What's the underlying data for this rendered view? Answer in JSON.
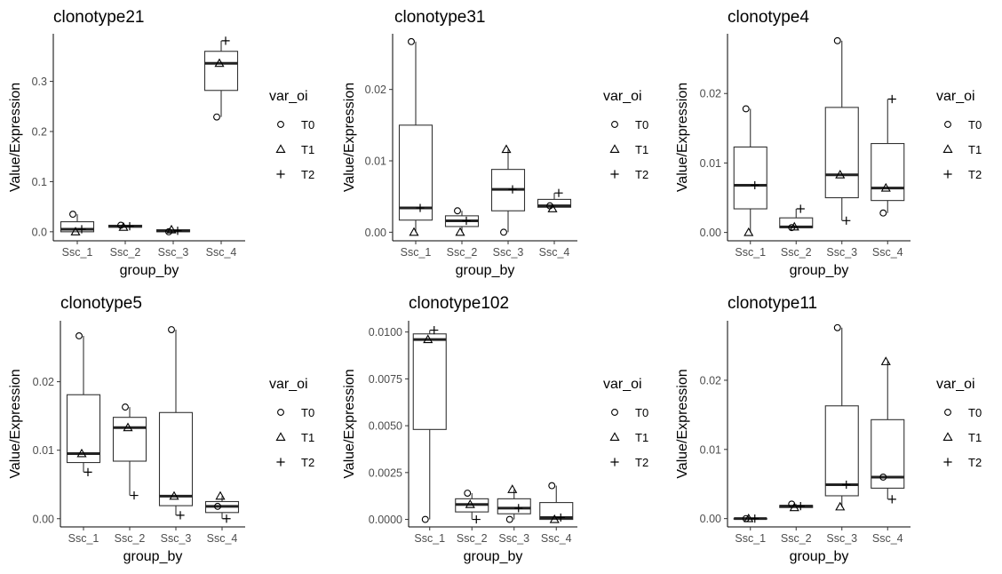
{
  "chart_data": {
    "type": "boxplot",
    "x_label": "group_by",
    "y_label": "Value/Expression",
    "legend_title": "var_oi",
    "legend_entries": [
      {
        "label": "T0",
        "shape": "circle"
      },
      {
        "label": "T1",
        "shape": "triangle"
      },
      {
        "label": "T2",
        "shape": "plus"
      }
    ],
    "grid": false,
    "legend_position": "right",
    "panels": [
      {
        "title": "clonotype21",
        "categories": [
          "Ssc_1",
          "Ssc_2",
          "Ssc_3",
          "Ssc_4"
        ],
        "ylim": [
          -0.018,
          0.395
        ],
        "yticks": [
          0.0,
          0.1,
          0.2,
          0.3
        ],
        "ytick_labels": [
          "0.0",
          "0.1",
          "0.2",
          "0.3"
        ],
        "boxes": [
          {
            "q1": 0.0,
            "median": 0.005,
            "q3": 0.02,
            "whisker_low": 0.0,
            "whisker_high": 0.035,
            "T0": 0.035,
            "T1": 0.0,
            "T2": 0.005
          },
          {
            "q1": 0.009,
            "median": 0.011,
            "q3": 0.013,
            "whisker_low": 0.009,
            "whisker_high": 0.013,
            "T0": 0.013,
            "T1": 0.009,
            "T2": 0.011
          },
          {
            "q1": 0.0,
            "median": 0.002,
            "q3": 0.004,
            "whisker_low": 0.0,
            "whisker_high": 0.004,
            "T0": 0.0,
            "T1": 0.004,
            "T2": 0.002
          },
          {
            "q1": 0.282,
            "median": 0.336,
            "q3": 0.36,
            "whisker_low": 0.229,
            "whisker_high": 0.381,
            "T0": 0.229,
            "T1": 0.336,
            "T2": 0.381
          }
        ]
      },
      {
        "title": "clonotype31",
        "categories": [
          "Ssc_1",
          "Ssc_2",
          "Ssc_3",
          "Ssc_4"
        ],
        "ylim": [
          -0.0012,
          0.0278
        ],
        "yticks": [
          0.0,
          0.01,
          0.02
        ],
        "ytick_labels": [
          "0.00",
          "0.01",
          "0.02"
        ],
        "boxes": [
          {
            "q1": 0.0017,
            "median": 0.0034,
            "q3": 0.015,
            "whisker_low": 0.0,
            "whisker_high": 0.0267,
            "T0": 0.0267,
            "T1": 0.0,
            "T2": 0.0034
          },
          {
            "q1": 0.0008,
            "median": 0.0016,
            "q3": 0.0023,
            "whisker_low": 0.0,
            "whisker_high": 0.003,
            "T0": 0.003,
            "T1": 0.0,
            "T2": 0.0016
          },
          {
            "q1": 0.003,
            "median": 0.006,
            "q3": 0.0088,
            "whisker_low": 0.0,
            "whisker_high": 0.0116,
            "T0": 0.0,
            "T1": 0.0116,
            "T2": 0.006
          },
          {
            "q1": 0.0035,
            "median": 0.0037,
            "q3": 0.0046,
            "whisker_low": 0.0033,
            "whisker_high": 0.0055,
            "T0": 0.0037,
            "T1": 0.0033,
            "T2": 0.0055
          }
        ]
      },
      {
        "title": "clonotype4",
        "categories": [
          "Ssc_1",
          "Ssc_2",
          "Ssc_3",
          "Ssc_4"
        ],
        "ylim": [
          -0.0012,
          0.0286
        ],
        "yticks": [
          0.0,
          0.01,
          0.02
        ],
        "ytick_labels": [
          "0.00",
          "0.01",
          "0.02"
        ],
        "boxes": [
          {
            "q1": 0.0034,
            "median": 0.0068,
            "q3": 0.0123,
            "whisker_low": 0.0,
            "whisker_high": 0.0178,
            "T0": 0.0178,
            "T1": 0.0,
            "T2": 0.0068
          },
          {
            "q1": 0.0007,
            "median": 0.0008,
            "q3": 0.0021,
            "whisker_low": 0.0007,
            "whisker_high": 0.0034,
            "T0": 0.0007,
            "T1": 0.0008,
            "T2": 0.0034
          },
          {
            "q1": 0.005,
            "median": 0.0083,
            "q3": 0.018,
            "whisker_low": 0.0017,
            "whisker_high": 0.0276,
            "T0": 0.0276,
            "T1": 0.0083,
            "T2": 0.0017
          },
          {
            "q1": 0.0046,
            "median": 0.0064,
            "q3": 0.0128,
            "whisker_low": 0.0028,
            "whisker_high": 0.0192,
            "T0": 0.0028,
            "T1": 0.0064,
            "T2": 0.0192
          }
        ]
      },
      {
        "title": "clonotype5",
        "categories": [
          "Ssc_1",
          "Ssc_2",
          "Ssc_3",
          "Ssc_4"
        ],
        "ylim": [
          -0.0012,
          0.0289
        ],
        "yticks": [
          0.0,
          0.01,
          0.02
        ],
        "ytick_labels": [
          "0.00",
          "0.01",
          "0.02"
        ],
        "boxes": [
          {
            "q1": 0.0082,
            "median": 0.0095,
            "q3": 0.0181,
            "whisker_low": 0.0068,
            "whisker_high": 0.0267,
            "T0": 0.0267,
            "T1": 0.0095,
            "T2": 0.0068
          },
          {
            "q1": 0.0084,
            "median": 0.0133,
            "q3": 0.0148,
            "whisker_low": 0.0034,
            "whisker_high": 0.0163,
            "T0": 0.0163,
            "T1": 0.0133,
            "T2": 0.0034
          },
          {
            "q1": 0.0019,
            "median": 0.0033,
            "q3": 0.0155,
            "whisker_low": 0.0005,
            "whisker_high": 0.0276,
            "T0": 0.0276,
            "T1": 0.0033,
            "T2": 0.0005
          },
          {
            "q1": 0.0009,
            "median": 0.0018,
            "q3": 0.0025,
            "whisker_low": 0.0,
            "whisker_high": 0.0033,
            "T0": 0.0018,
            "T1": 0.0033,
            "T2": 0.0
          }
        ]
      },
      {
        "title": "clonotype102",
        "categories": [
          "Ssc_1",
          "Ssc_2",
          "Ssc_3",
          "Ssc_4"
        ],
        "ylim": [
          -0.0004,
          0.0106
        ],
        "yticks": [
          0.0,
          0.0025,
          0.005,
          0.0075,
          0.01
        ],
        "ytick_labels": [
          "0.0000",
          "0.0025",
          "0.0050",
          "0.0075",
          "0.0100"
        ],
        "boxes": [
          {
            "q1": 0.0048,
            "median": 0.0096,
            "q3": 0.0099,
            "whisker_low": 0.0,
            "whisker_high": 0.0101,
            "T0": 0.0,
            "T1": 0.0096,
            "T2": 0.0101
          },
          {
            "q1": 0.0004,
            "median": 0.0008,
            "q3": 0.0011,
            "whisker_low": 0.0,
            "whisker_high": 0.0014,
            "T0": 0.0014,
            "T1": 0.0008,
            "T2": 0.0
          },
          {
            "q1": 0.0003,
            "median": 0.0006,
            "q3": 0.0011,
            "whisker_low": 0.0,
            "whisker_high": 0.0016,
            "T0": 0.0,
            "T1": 0.0016,
            "T2": 0.0006
          },
          {
            "q1": 0.0,
            "median": 0.0001,
            "q3": 0.0009,
            "whisker_low": 0.0,
            "whisker_high": 0.0018,
            "T0": 0.0018,
            "T1": 0.0,
            "T2": 0.0001
          }
        ]
      },
      {
        "title": "clonotype11",
        "categories": [
          "Ssc_1",
          "Ssc_2",
          "Ssc_3",
          "Ssc_4"
        ],
        "ylim": [
          -0.0012,
          0.0286
        ],
        "yticks": [
          0.0,
          0.01,
          0.02
        ],
        "ytick_labels": [
          "0.00",
          "0.01",
          "0.02"
        ],
        "boxes": [
          {
            "q1": 0.0,
            "median": 0.0,
            "q3": 0.0,
            "whisker_low": 0.0,
            "whisker_high": 0.0,
            "T0": 0.0,
            "T1": 0.0,
            "T2": 0.0
          },
          {
            "q1": 0.0016,
            "median": 0.0018,
            "q3": 0.0019,
            "whisker_low": 0.0016,
            "whisker_high": 0.0021,
            "T0": 0.0021,
            "T1": 0.0016,
            "T2": 0.0018
          },
          {
            "q1": 0.0033,
            "median": 0.0049,
            "q3": 0.0163,
            "whisker_low": 0.0017,
            "whisker_high": 0.0276,
            "T0": 0.0276,
            "T1": 0.0017,
            "T2": 0.0049
          },
          {
            "q1": 0.0044,
            "median": 0.006,
            "q3": 0.0143,
            "whisker_low": 0.0028,
            "whisker_high": 0.0227,
            "T0": 0.006,
            "T1": 0.0227,
            "T2": 0.0028
          }
        ]
      }
    ]
  }
}
